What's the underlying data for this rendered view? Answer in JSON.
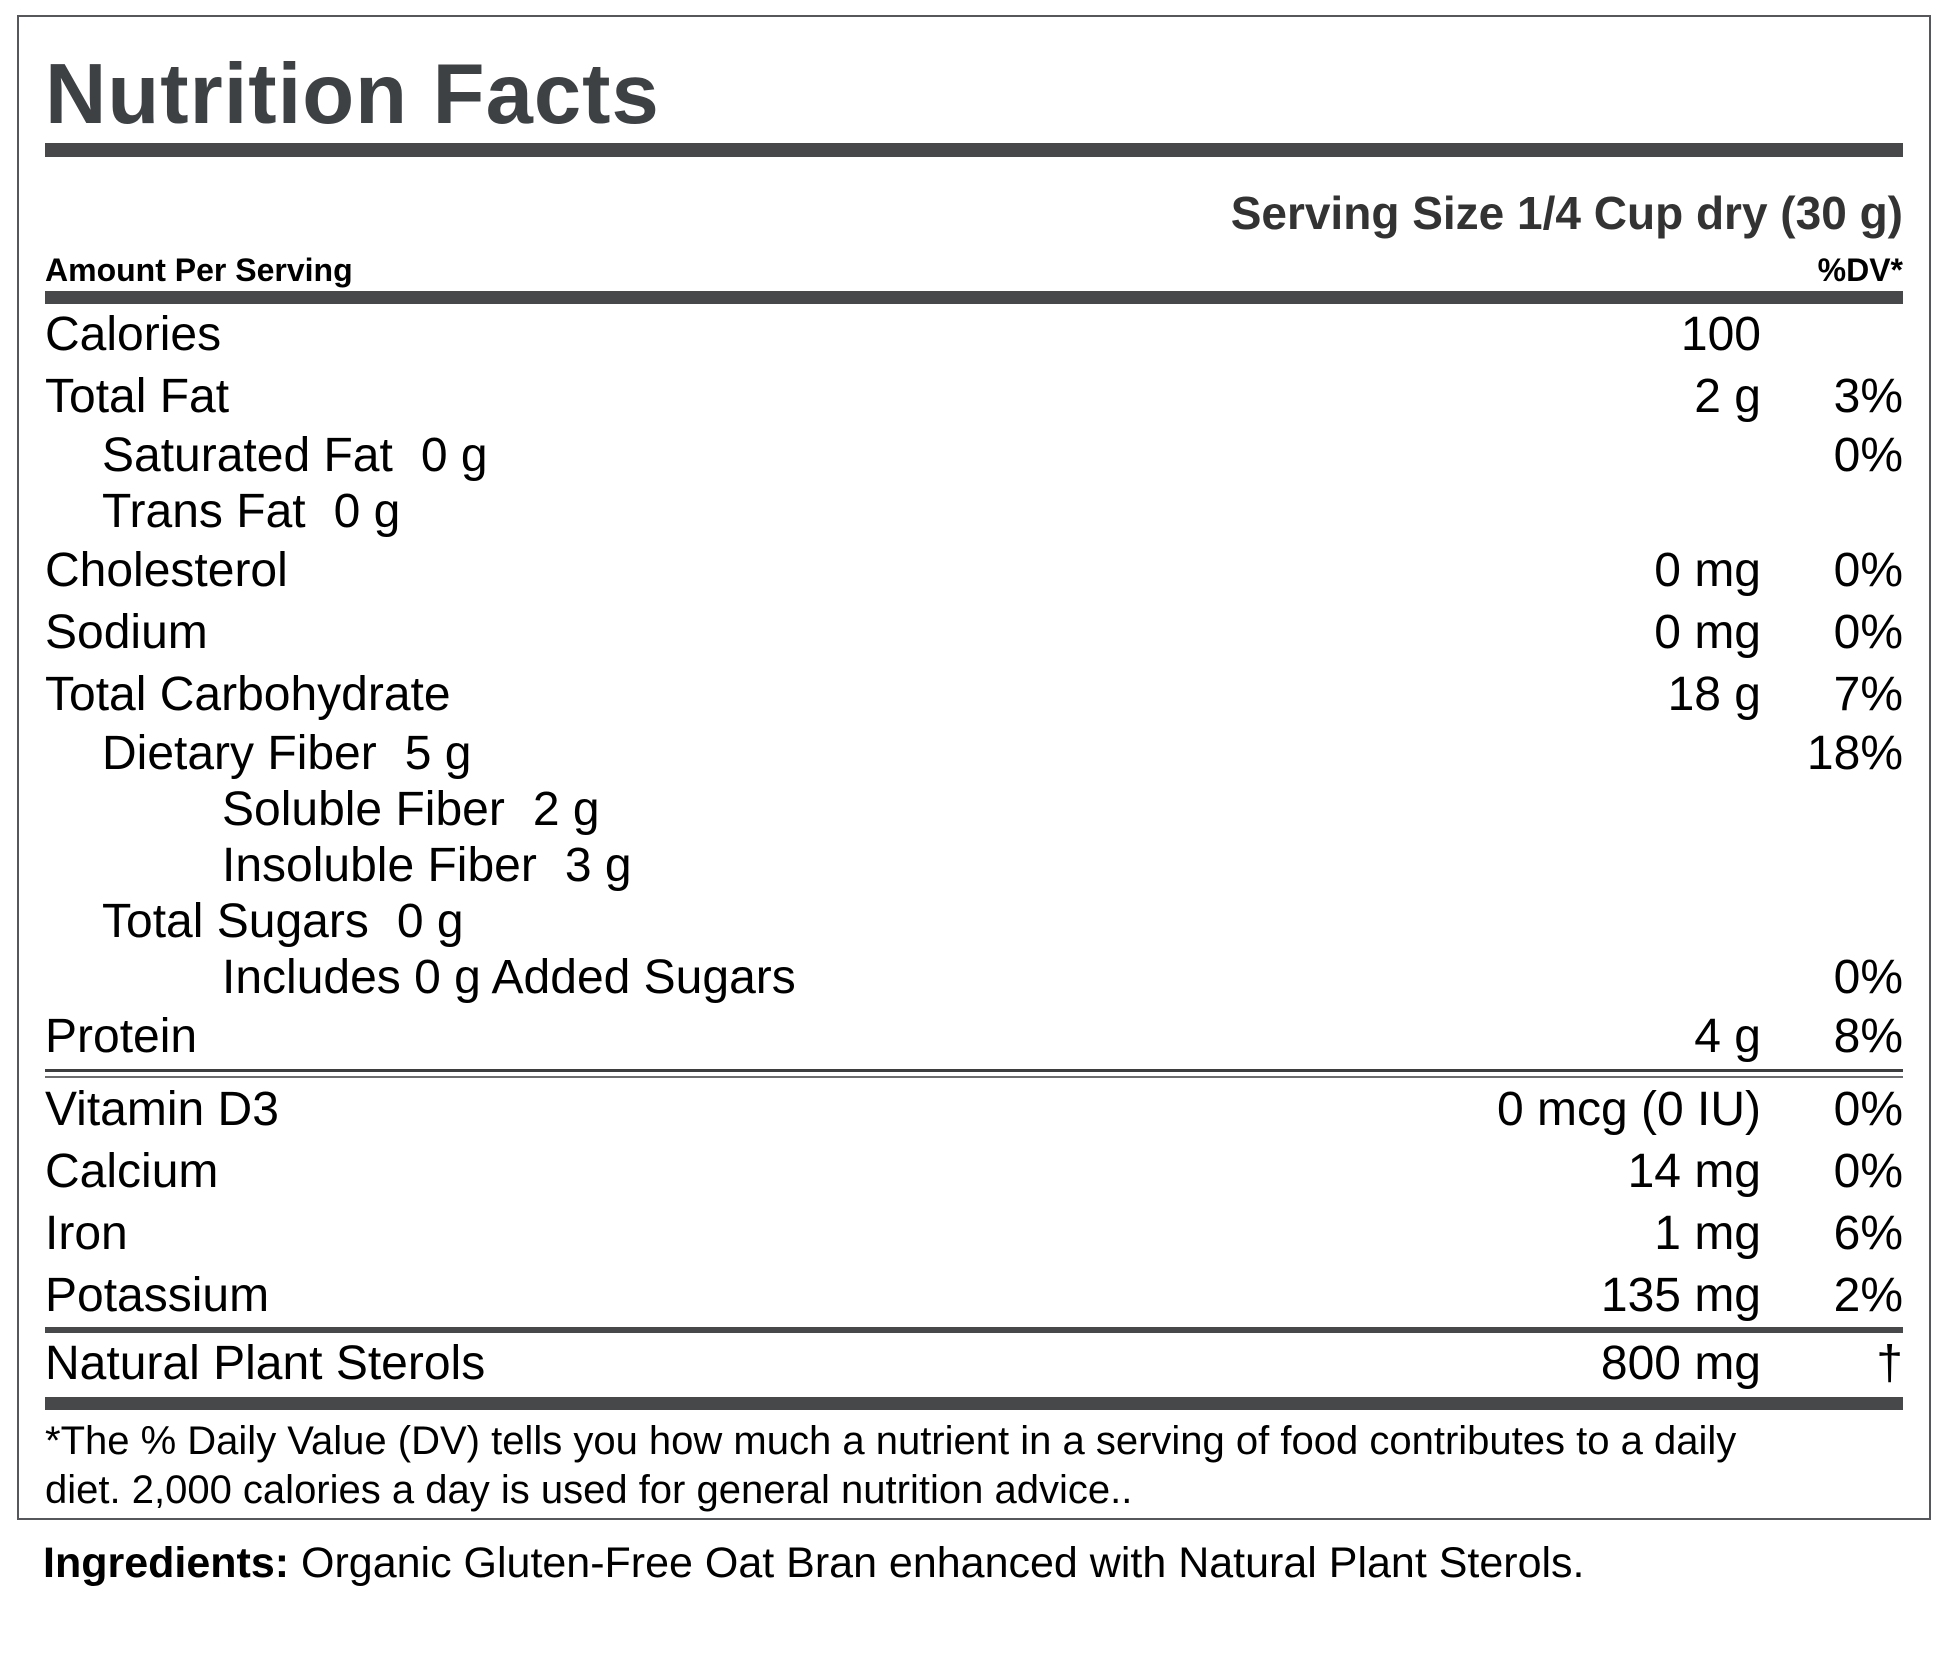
{
  "label": {
    "title": "Nutrition Facts",
    "serving_size": "Serving Size 1/4 Cup dry (30 g)",
    "header": {
      "left": "Amount Per Serving",
      "right": "%DV*"
    },
    "rows": [
      {
        "name": "Calories",
        "indent": 0,
        "amount": "100",
        "dv": ""
      },
      {
        "name": "Total Fat",
        "indent": 0,
        "amount": "2 g",
        "dv": "3%"
      },
      {
        "name": "Saturated Fat",
        "indent": 1,
        "inline_amount": "0 g",
        "dv": "0%"
      },
      {
        "name": "Trans Fat",
        "indent": 1,
        "inline_amount": "0 g",
        "dv": ""
      },
      {
        "name": "Cholesterol",
        "indent": 0,
        "amount": "0 mg",
        "dv": "0%"
      },
      {
        "name": "Sodium",
        "indent": 0,
        "amount": "0 mg",
        "dv": "0%"
      },
      {
        "name": "Total Carbohydrate",
        "indent": 0,
        "amount": "18 g",
        "dv": "7%"
      },
      {
        "name": "Dietary Fiber",
        "indent": 1,
        "inline_amount": "5 g",
        "dv": "18%"
      },
      {
        "name": "Soluble Fiber",
        "indent": 2,
        "inline_amount": "2 g",
        "dv": ""
      },
      {
        "name": "Insoluble Fiber",
        "indent": 2,
        "inline_amount": "3 g",
        "dv": ""
      },
      {
        "name": "Total Sugars",
        "indent": 1,
        "inline_amount": "0 g",
        "dv": ""
      },
      {
        "name": "Includes 0 g Added Sugars",
        "indent": 2,
        "amount": "",
        "dv": "0%"
      },
      {
        "name": "Protein",
        "indent": 0,
        "amount": "4 g",
        "dv": "8%",
        "rule_after": "double"
      },
      {
        "name": "Vitamin D3",
        "indent": 0,
        "amount": "0 mcg (0 IU)",
        "dv": "0%"
      },
      {
        "name": "Calcium",
        "indent": 0,
        "amount": "14 mg",
        "dv": "0%"
      },
      {
        "name": "Iron",
        "indent": 0,
        "amount": "1 mg",
        "dv": "6%"
      },
      {
        "name": "Potassium",
        "indent": 0,
        "amount": "135 mg",
        "dv": "2%",
        "rule_after": "medium"
      },
      {
        "name": "Natural Plant Sterols",
        "indent": 0,
        "amount": "800 mg",
        "dv": "†"
      }
    ],
    "footnote_lines": [
      "*The % Daily Value (DV) tells you how much a nutrient in a serving of food contributes to a daily",
      "diet. 2,000 calories a day is used for general nutrition advice.."
    ],
    "footnote_full": "*The % Daily Value (DV) tells you how much a nutrient in a serving of food contributes to a daily diet. 2,000 calories a day is used for general nutrition advice..",
    "ingredients_label": "Ingredients:",
    "ingredients_text": " Organic Gluten-Free Oat Bran enhanced with Natural Plant Sterols.",
    "colors": {
      "text": "#000000",
      "title": "#3e4144",
      "bar": "#46484a",
      "border": "#55575a",
      "background": "#ffffff"
    }
  }
}
